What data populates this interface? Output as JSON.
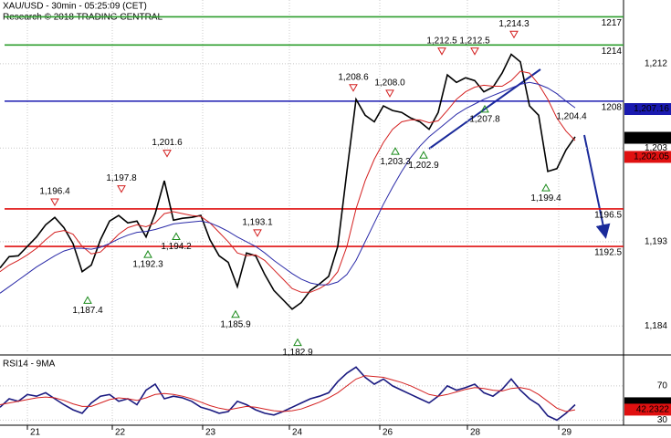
{
  "chart_data": [
    {
      "type": "line",
      "title": "XAU/USD - 30min - 05:25:09 (CET)",
      "subtitle": "Research © 2018 TRADING CENTRAL",
      "xlim": [
        0,
        68.3
      ],
      "ylim": [
        1181.3,
        1218.8
      ],
      "xticks": [
        {
          "value": 3,
          "label": "21"
        },
        {
          "value": 12.3,
          "label": "22"
        },
        {
          "value": 22.2,
          "label": "23"
        },
        {
          "value": 31.7,
          "label": "24"
        },
        {
          "value": 41.6,
          "label": "26"
        },
        {
          "value": 51.2,
          "label": "28"
        },
        {
          "value": 61.2,
          "label": "29"
        }
      ],
      "yticks": [
        {
          "value": 1212,
          "label": "1,212"
        },
        {
          "value": 1203,
          "label": "1,203"
        },
        {
          "value": 1193,
          "label": "1,193"
        },
        {
          "value": 1184,
          "label": "1,184"
        }
      ],
      "grid": true,
      "series": [
        {
          "name": "Price",
          "color": "#000000",
          "values": [
            1190.2,
            1191.4,
            1191.5,
            1192.5,
            1193.5,
            1194.8,
            1195.6,
            1194.5,
            1192.8,
            1189.8,
            1190.5,
            1193.2,
            1195.2,
            1195.8,
            1195.0,
            1195.2,
            1193.5,
            1196.0,
            1199.5,
            1195.3,
            1195.5,
            1195.6,
            1195.8,
            1193.2,
            1191.5,
            1190.8,
            1188.2,
            1191.8,
            1191.5,
            1189.5,
            1187.8,
            1186.8,
            1185.8,
            1186.5,
            1187.8,
            1188.5,
            1189.3,
            1192.5,
            1200.5,
            1208.2,
            1206.5,
            1205.8,
            1207.5,
            1207.0,
            1206.8,
            1206.2,
            1205.8,
            1205.0,
            1206.8,
            1210.8,
            1210.0,
            1210.5,
            1210.2,
            1209.0,
            1209.5,
            1211.0,
            1213.0,
            1212.2,
            1207.5,
            1206.5,
            1200.5,
            1200.8,
            1202.8,
            1204.2
          ]
        },
        {
          "name": "Fast MA",
          "color": "#d42020",
          "values": [
            1189.8,
            1190.5,
            1191.0,
            1191.6,
            1192.3,
            1193.2,
            1194.0,
            1194.2,
            1193.8,
            1192.5,
            1191.7,
            1191.9,
            1192.8,
            1193.8,
            1194.5,
            1194.8,
            1194.6,
            1195.0,
            1196.0,
            1196.2,
            1196.0,
            1195.8,
            1195.7,
            1195.0,
            1194.0,
            1193.0,
            1191.8,
            1191.5,
            1191.6,
            1191.0,
            1190.0,
            1189.0,
            1188.0,
            1187.6,
            1187.6,
            1188.0,
            1188.6,
            1189.8,
            1192.5,
            1196.5,
            1199.5,
            1201.8,
            1203.6,
            1205.0,
            1205.8,
            1206.0,
            1206.0,
            1205.7,
            1205.9,
            1207.0,
            1208.2,
            1209.0,
            1209.5,
            1209.7,
            1209.6,
            1209.6,
            1210.2,
            1211.2,
            1211.0,
            1209.8,
            1208.2,
            1206.2,
            1204.8,
            1203.8
          ]
        },
        {
          "name": "Slow MA",
          "color": "#2a2aa8",
          "values": [
            1187.5,
            1188.2,
            1188.9,
            1189.6,
            1190.3,
            1190.9,
            1191.5,
            1192.0,
            1192.3,
            1192.3,
            1192.2,
            1192.4,
            1192.8,
            1193.3,
            1193.7,
            1194.0,
            1194.1,
            1194.3,
            1194.6,
            1194.9,
            1195.0,
            1195.1,
            1195.2,
            1195.0,
            1194.6,
            1194.1,
            1193.5,
            1193.0,
            1192.5,
            1191.8,
            1191.0,
            1190.3,
            1189.6,
            1189.0,
            1188.6,
            1188.4,
            1188.4,
            1188.7,
            1189.5,
            1191.0,
            1193.0,
            1195.0,
            1197.0,
            1198.8,
            1200.5,
            1202.0,
            1203.2,
            1204.2,
            1205.0,
            1205.8,
            1206.6,
            1207.2,
            1207.7,
            1208.2,
            1208.6,
            1209.0,
            1209.4,
            1209.8,
            1210.0,
            1209.8,
            1209.4,
            1208.8,
            1208.0,
            1207.3
          ]
        }
      ],
      "levels": [
        {
          "value": 1217,
          "color": "#2e9e2e"
        },
        {
          "value": 1214,
          "color": "#2e9e2e"
        },
        {
          "value": 1208,
          "color": "#1a1ab0"
        },
        {
          "value": 1196.5,
          "color": "#e01010"
        },
        {
          "value": 1192.5,
          "color": "#e01010"
        }
      ],
      "tags": [
        {
          "value": 1207.16,
          "label": "1,207.16",
          "color": "#1a1ab0"
        },
        {
          "value": 1204.09,
          "label": "1,204.09",
          "color": "#000000"
        },
        {
          "value": 1202.05,
          "label": "1,202.05",
          "color": "#e01010"
        }
      ],
      "annotations": [
        {
          "x": 6.0,
          "value": 1196.4,
          "label": "1,196.4",
          "kind": "high"
        },
        {
          "x": 13.3,
          "value": 1197.8,
          "label": "1,197.8",
          "kind": "high"
        },
        {
          "x": 18.3,
          "value": 1201.6,
          "label": "1,201.6",
          "kind": "high"
        },
        {
          "x": 9.6,
          "value": 1187.4,
          "label": "1,187.4",
          "kind": "low"
        },
        {
          "x": 16.2,
          "value": 1192.3,
          "label": "1,192.3",
          "kind": "low"
        },
        {
          "x": 19.3,
          "value": 1194.2,
          "label": "1,194.2",
          "kind": "low"
        },
        {
          "x": 28.2,
          "value": 1193.1,
          "label": "1,193.1",
          "kind": "high"
        },
        {
          "x": 25.8,
          "value": 1185.9,
          "label": "1,185.9",
          "kind": "low"
        },
        {
          "x": 32.6,
          "value": 1182.9,
          "label": "1,182.9",
          "kind": "low"
        },
        {
          "x": 38.7,
          "value": 1208.6,
          "label": "1,208.6",
          "kind": "high"
        },
        {
          "x": 42.7,
          "value": 1208.0,
          "label": "1,208.0",
          "kind": "high"
        },
        {
          "x": 43.3,
          "value": 1203.3,
          "label": "1,203.3",
          "kind": "low"
        },
        {
          "x": 46.4,
          "value": 1202.9,
          "label": "1,202.9",
          "kind": "low"
        },
        {
          "x": 48.4,
          "value": 1212.5,
          "label": "1,212.5",
          "kind": "high"
        },
        {
          "x": 52.0,
          "value": 1212.5,
          "label": "1,212.5",
          "kind": "high"
        },
        {
          "x": 56.3,
          "value": 1214.3,
          "label": "1,214.3",
          "kind": "high"
        },
        {
          "x": 53.1,
          "value": 1207.8,
          "label": "1,207.8",
          "kind": "low"
        },
        {
          "x": 59.8,
          "value": 1199.4,
          "label": "1,199.4",
          "kind": "low"
        },
        {
          "x": 62.6,
          "value": 1204.4,
          "label": "1,204.4",
          "kind": "label"
        }
      ]
    },
    {
      "type": "line",
      "title": "RSI14 - 9MA",
      "xlim": [
        0,
        68.3
      ],
      "ylim": [
        24,
        103
      ],
      "yticks": [
        70,
        30
      ],
      "grid": true,
      "series": [
        {
          "name": "RSI14",
          "color": "#1a1a80",
          "values": [
            45,
            55,
            52,
            60,
            58,
            62,
            55,
            48,
            42,
            38,
            50,
            58,
            60,
            52,
            55,
            48,
            65,
            72,
            55,
            58,
            56,
            52,
            45,
            42,
            38,
            40,
            52,
            48,
            42,
            38,
            36,
            40,
            45,
            50,
            55,
            58,
            62,
            75,
            85,
            92,
            80,
            72,
            78,
            70,
            65,
            60,
            55,
            50,
            58,
            70,
            65,
            68,
            72,
            62,
            58,
            66,
            78,
            65,
            55,
            48,
            35,
            30,
            38,
            48
          ]
        },
        {
          "name": "9MA",
          "color": "#d42020",
          "values": [
            48,
            50,
            52,
            54,
            56,
            57,
            56,
            53,
            49,
            46,
            46,
            50,
            54,
            56,
            55,
            53,
            56,
            60,
            61,
            60,
            58,
            55,
            51,
            47,
            44,
            42,
            44,
            46,
            45,
            43,
            41,
            40,
            41,
            43,
            47,
            51,
            56,
            62,
            70,
            78,
            82,
            81,
            80,
            77,
            74,
            70,
            65,
            60,
            58,
            60,
            63,
            66,
            68,
            67,
            65,
            64,
            67,
            68,
            66,
            60,
            52,
            44,
            40,
            42
          ]
        }
      ],
      "tags": [
        {
          "value": 49.7059,
          "label": "49.7059",
          "color": "#000000"
        },
        {
          "value": 42.2322,
          "label": "42.2322",
          "color": "#e01010"
        }
      ]
    }
  ]
}
